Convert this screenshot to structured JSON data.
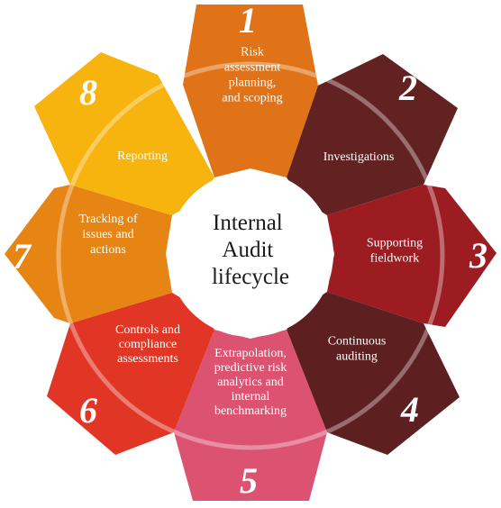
{
  "center": {
    "title_lines": [
      "Internal",
      "Audit",
      "lifecycle"
    ]
  },
  "segments": [
    {
      "number": "1",
      "label_lines": [
        "Risk",
        "assessment",
        "planning,",
        "and scoping"
      ],
      "color": "#e07318"
    },
    {
      "number": "2",
      "label_lines": [
        "Investigations"
      ],
      "color": "#632222"
    },
    {
      "number": "3",
      "label_lines": [
        "Supporting",
        "fieldwork"
      ],
      "color": "#9c1c21"
    },
    {
      "number": "4",
      "label_lines": [
        "Continuous",
        "auditing"
      ],
      "color": "#5e1f21"
    },
    {
      "number": "5",
      "label_lines": [
        "Extrapolation,",
        "predictive risk",
        "analytics and",
        "internal",
        "benchmarking"
      ],
      "color": "#dc5271"
    },
    {
      "number": "6",
      "label_lines": [
        "Controls and",
        "compliance",
        "assessments"
      ],
      "color": "#e13625"
    },
    {
      "number": "7",
      "label_lines": [
        "Tracking of",
        "issues and",
        "actions"
      ],
      "color": "#e68514"
    },
    {
      "number": "8",
      "label_lines": [
        "Reporting"
      ],
      "color": "#f7b30e"
    }
  ]
}
